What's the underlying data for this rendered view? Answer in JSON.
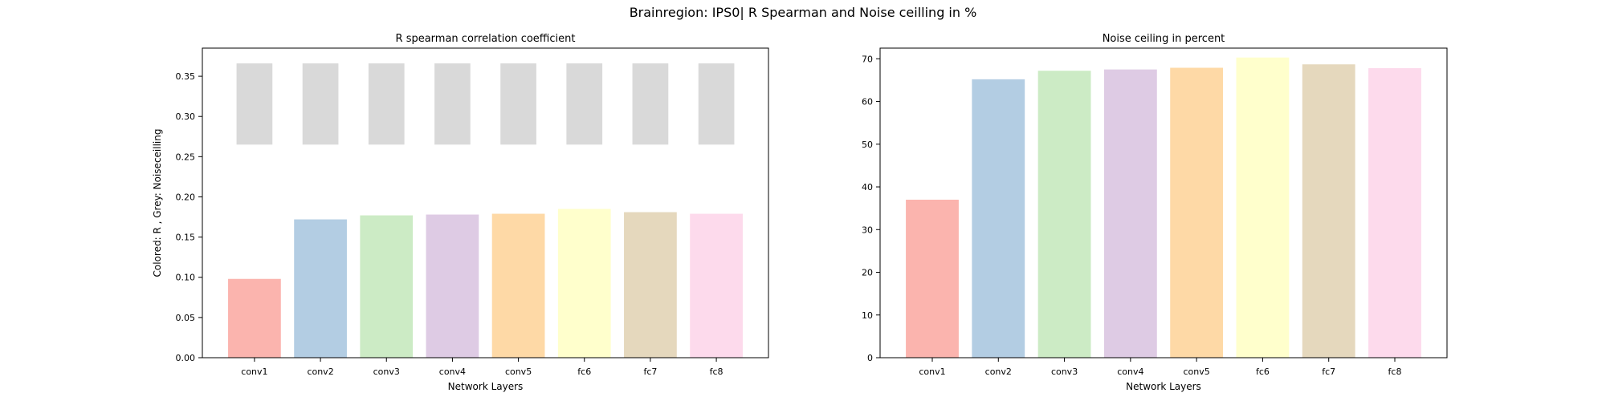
{
  "figure": {
    "title": "Brainregion: IPS0| R Spearman and Noise ceilling in %"
  },
  "chart_data": [
    {
      "type": "bar",
      "title": "R spearman correlation coefficient",
      "xlabel": "Network Layers",
      "ylabel": "Colored: R , Grey: Noiseceilling",
      "ylim": [
        0,
        0.385
      ],
      "yticks": [
        0.0,
        0.05,
        0.1,
        0.15,
        0.2,
        0.25,
        0.3,
        0.35
      ],
      "ytick_labels": [
        "0.00",
        "0.05",
        "0.10",
        "0.15",
        "0.20",
        "0.25",
        "0.30",
        "0.35"
      ],
      "categories": [
        "conv1",
        "conv2",
        "conv3",
        "conv4",
        "conv5",
        "fc6",
        "fc7",
        "fc8"
      ],
      "values": [
        0.098,
        0.172,
        0.177,
        0.178,
        0.179,
        0.185,
        0.181,
        0.179
      ],
      "noise_ceiling": {
        "lower": 0.265,
        "upper": 0.366
      },
      "colors": [
        "#fbb4ae",
        "#b3cde3",
        "#ccebc5",
        "#decbe4",
        "#fed9a6",
        "#ffffcc",
        "#e5d8bd",
        "#fddaec"
      ],
      "noise_ceiling_color": "#d9d9d9",
      "grid": false
    },
    {
      "type": "bar",
      "title": "Noise ceiling in percent",
      "xlabel": "Network Layers",
      "ylabel": "",
      "ylim": [
        0,
        72.5
      ],
      "yticks": [
        0,
        10,
        20,
        30,
        40,
        50,
        60,
        70
      ],
      "ytick_labels": [
        "0",
        "10",
        "20",
        "30",
        "40",
        "50",
        "60",
        "70"
      ],
      "categories": [
        "conv1",
        "conv2",
        "conv3",
        "conv4",
        "conv5",
        "fc6",
        "fc7",
        "fc8"
      ],
      "values": [
        37.0,
        65.2,
        67.2,
        67.5,
        67.9,
        70.3,
        68.7,
        67.8
      ],
      "colors": [
        "#fbb4ae",
        "#b3cde3",
        "#ccebc5",
        "#decbe4",
        "#fed9a6",
        "#ffffcc",
        "#e5d8bd",
        "#fddaec"
      ],
      "grid": false
    }
  ]
}
